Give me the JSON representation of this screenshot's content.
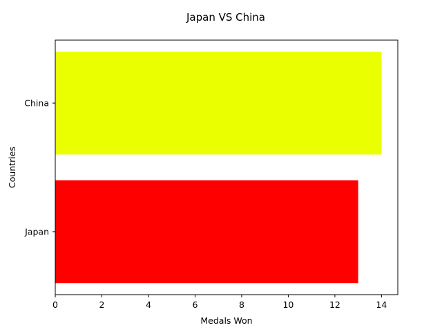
{
  "chart_data": {
    "type": "bar",
    "orientation": "horizontal",
    "title": "Japan VS China",
    "xlabel": "Medals Won",
    "ylabel": "Countries",
    "categories": [
      "Japan",
      "China"
    ],
    "values": [
      13,
      14
    ],
    "colors": [
      "#ff0000",
      "#eaff00"
    ],
    "xlim": [
      0,
      14.7
    ],
    "xticks": [
      "0",
      "2",
      "4",
      "6",
      "8",
      "10",
      "12",
      "14"
    ],
    "grid": false
  }
}
